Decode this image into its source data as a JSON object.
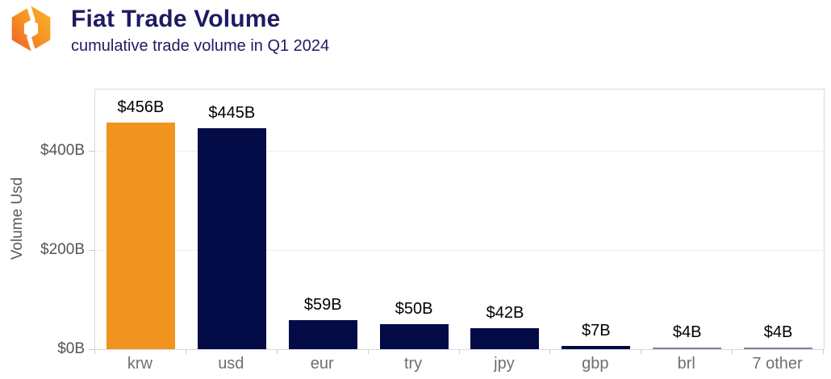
{
  "header": {
    "title": "Fiat Trade Volume",
    "subtitle": "cumulative trade volume in Q1 2024"
  },
  "chart_data": {
    "type": "bar",
    "title": "Fiat Trade Volume",
    "subtitle": "cumulative trade volume in Q1 2024",
    "xlabel": "",
    "ylabel": "Volume Usd",
    "categories": [
      "krw",
      "usd",
      "eur",
      "try",
      "jpy",
      "gbp",
      "brl",
      "7 other"
    ],
    "values": [
      456,
      445,
      59,
      50,
      42,
      7,
      4,
      4
    ],
    "data_labels": [
      "$456B",
      "$445B",
      "$59B",
      "$50B",
      "$42B",
      "$7B",
      "$4B",
      "$4B"
    ],
    "bar_colors": [
      "#F0931F",
      "#020B46",
      "#020B46",
      "#020B46",
      "#020B46",
      "#020B46",
      "#7B80A1",
      "#7B80A1"
    ],
    "unit": "billions USD",
    "ylim": [
      0,
      523
    ],
    "yticks": {
      "values": [
        0,
        200,
        400
      ],
      "labels": [
        "$0B",
        "$200B",
        "$400B"
      ]
    },
    "grid": true,
    "legend": false
  },
  "colors": {
    "accent_orange": "#F0931F",
    "bar_navy": "#020B46",
    "thin_bar_blue_gray": "#7B80A1",
    "title_navy": "#1E1B62",
    "tick_gray": "#555555",
    "category_gray": "#6F6F6F",
    "plot_border": "#DADADE",
    "gridline": "#EDEDED"
  }
}
